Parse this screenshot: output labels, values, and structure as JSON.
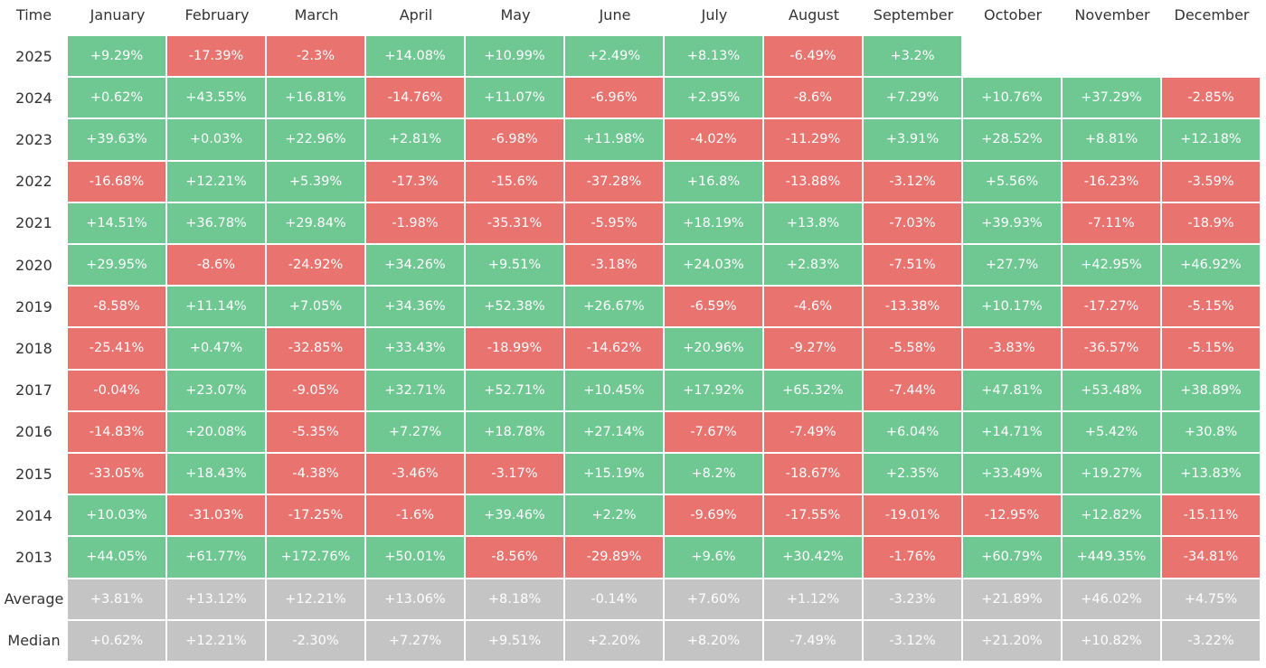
{
  "table": {
    "header": [
      "Time",
      "January",
      "February",
      "March",
      "April",
      "May",
      "June",
      "July",
      "August",
      "September",
      "October",
      "November",
      "December"
    ],
    "rows": [
      {
        "label": "2025",
        "cells": [
          "+9.29%",
          "-17.39%",
          "-2.3%",
          "+14.08%",
          "+10.99%",
          "+2.49%",
          "+8.13%",
          "-6.49%",
          "+3.2%"
        ]
      },
      {
        "label": "2024",
        "cells": [
          "+0.62%",
          "+43.55%",
          "+16.81%",
          "-14.76%",
          "+11.07%",
          "-6.96%",
          "+2.95%",
          "-8.6%",
          "+7.29%",
          "+10.76%",
          "+37.29%",
          "-2.85%"
        ]
      },
      {
        "label": "2023",
        "cells": [
          "+39.63%",
          "+0.03%",
          "+22.96%",
          "+2.81%",
          "-6.98%",
          "+11.98%",
          "-4.02%",
          "-11.29%",
          "+3.91%",
          "+28.52%",
          "+8.81%",
          "+12.18%"
        ]
      },
      {
        "label": "2022",
        "cells": [
          "-16.68%",
          "+12.21%",
          "+5.39%",
          "-17.3%",
          "-15.6%",
          "-37.28%",
          "+16.8%",
          "-13.88%",
          "-3.12%",
          "+5.56%",
          "-16.23%",
          "-3.59%"
        ]
      },
      {
        "label": "2021",
        "cells": [
          "+14.51%",
          "+36.78%",
          "+29.84%",
          "-1.98%",
          "-35.31%",
          "-5.95%",
          "+18.19%",
          "+13.8%",
          "-7.03%",
          "+39.93%",
          "-7.11%",
          "-18.9%"
        ]
      },
      {
        "label": "2020",
        "cells": [
          "+29.95%",
          "-8.6%",
          "-24.92%",
          "+34.26%",
          "+9.51%",
          "-3.18%",
          "+24.03%",
          "+2.83%",
          "-7.51%",
          "+27.7%",
          "+42.95%",
          "+46.92%"
        ]
      },
      {
        "label": "2019",
        "cells": [
          "-8.58%",
          "+11.14%",
          "+7.05%",
          "+34.36%",
          "+52.38%",
          "+26.67%",
          "-6.59%",
          "-4.6%",
          "-13.38%",
          "+10.17%",
          "-17.27%",
          "-5.15%"
        ]
      },
      {
        "label": "2018",
        "cells": [
          "-25.41%",
          "+0.47%",
          "-32.85%",
          "+33.43%",
          "-18.99%",
          "-14.62%",
          "+20.96%",
          "-9.27%",
          "-5.58%",
          "-3.83%",
          "-36.57%",
          "-5.15%"
        ]
      },
      {
        "label": "2017",
        "cells": [
          "-0.04%",
          "+23.07%",
          "-9.05%",
          "+32.71%",
          "+52.71%",
          "+10.45%",
          "+17.92%",
          "+65.32%",
          "-7.44%",
          "+47.81%",
          "+53.48%",
          "+38.89%"
        ]
      },
      {
        "label": "2016",
        "cells": [
          "-14.83%",
          "+20.08%",
          "-5.35%",
          "+7.27%",
          "+18.78%",
          "+27.14%",
          "-7.67%",
          "-7.49%",
          "+6.04%",
          "+14.71%",
          "+5.42%",
          "+30.8%"
        ]
      },
      {
        "label": "2015",
        "cells": [
          "-33.05%",
          "+18.43%",
          "-4.38%",
          "-3.46%",
          "-3.17%",
          "+15.19%",
          "+8.2%",
          "-18.67%",
          "+2.35%",
          "+33.49%",
          "+19.27%",
          "+13.83%"
        ]
      },
      {
        "label": "2014",
        "cells": [
          "+10.03%",
          "-31.03%",
          "-17.25%",
          "-1.6%",
          "+39.46%",
          "+2.2%",
          "-9.69%",
          "-17.55%",
          "-19.01%",
          "-12.95%",
          "+12.82%",
          "-15.11%"
        ]
      },
      {
        "label": "2013",
        "cells": [
          "+44.05%",
          "+61.77%",
          "+172.76%",
          "+50.01%",
          "-8.56%",
          "-29.89%",
          "+9.6%",
          "+30.42%",
          "-1.76%",
          "+60.79%",
          "+449.35%",
          "-34.81%"
        ]
      }
    ],
    "summary": [
      {
        "label": "Average",
        "cells": [
          "+3.81%",
          "+13.12%",
          "+12.21%",
          "+13.06%",
          "+8.18%",
          "-0.14%",
          "+7.60%",
          "+1.12%",
          "-3.23%",
          "+21.89%",
          "+46.02%",
          "+4.75%"
        ]
      },
      {
        "label": "Median",
        "cells": [
          "+0.62%",
          "+12.21%",
          "-2.30%",
          "+7.27%",
          "+9.51%",
          "+2.20%",
          "+8.20%",
          "-7.49%",
          "-3.12%",
          "+21.20%",
          "+10.82%",
          "-3.22%"
        ]
      }
    ],
    "colors": {
      "positive": "#6fc792",
      "negative": "#e8736f",
      "summary": "#c4c4c4"
    }
  }
}
